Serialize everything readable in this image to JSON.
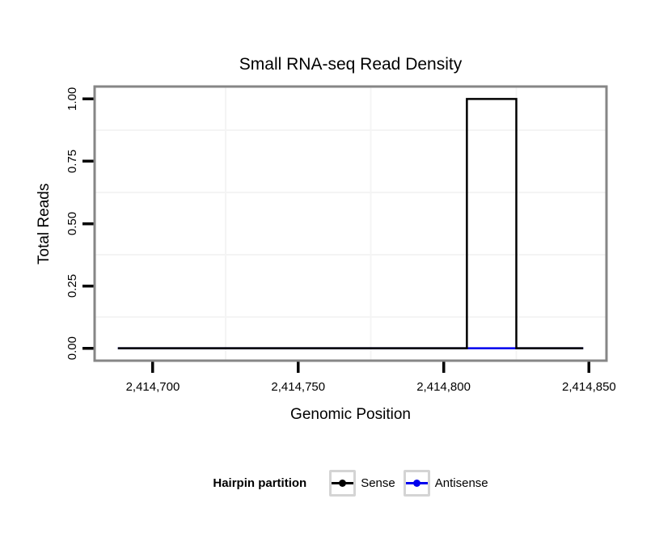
{
  "title": "Small RNA-seq Read Density",
  "axes": {
    "x_title": "Genomic Position",
    "y_title": "Total Reads"
  },
  "legend": {
    "title": "Hairpin partition",
    "items": [
      {
        "label": "Sense",
        "color": "#000000"
      },
      {
        "label": "Antisense",
        "color": "#0000EE"
      }
    ]
  },
  "colors": {
    "panel_border": "#868686",
    "panel_background": "#ffffff",
    "grid_minor": "#f4f4f4",
    "tick": "#000000",
    "legend_key_border": "#d4d4d4"
  },
  "chart_data": {
    "type": "line",
    "title": "Small RNA-seq Read Density",
    "xlabel": "Genomic Position",
    "ylabel": "Total Reads",
    "xlim": [
      2414688,
      2414848
    ],
    "ylim": [
      0,
      1
    ],
    "expansion": 0.05,
    "grid": "minor-only",
    "legend_position": "bottom",
    "legend_title": "Hairpin partition",
    "x_ticks": [
      2414700,
      2414750,
      2414800,
      2414850
    ],
    "x_tick_labels": [
      "2,414,700",
      "2,414,750",
      "2,414,800",
      "2,414,850"
    ],
    "y_ticks": [
      0,
      0.25,
      0.5,
      0.75,
      1.0
    ],
    "y_tick_labels": [
      "0.00",
      "0.25",
      "0.50",
      "0.75",
      "1.00"
    ],
    "x_minor": [
      2414725,
      2414775,
      2414825
    ],
    "y_minor": [
      0.125,
      0.375,
      0.625,
      0.875
    ],
    "series": [
      {
        "name": "Sense",
        "color": "#000000",
        "points": [
          [
            2414688,
            0
          ],
          [
            2414808,
            0
          ],
          [
            2414808,
            1
          ],
          [
            2414825,
            1
          ],
          [
            2414825,
            0
          ],
          [
            2414848,
            0
          ]
        ]
      },
      {
        "name": "Antisense",
        "color": "#0000EE",
        "points": [
          [
            2414688,
            0
          ],
          [
            2414848,
            0
          ]
        ]
      }
    ]
  }
}
